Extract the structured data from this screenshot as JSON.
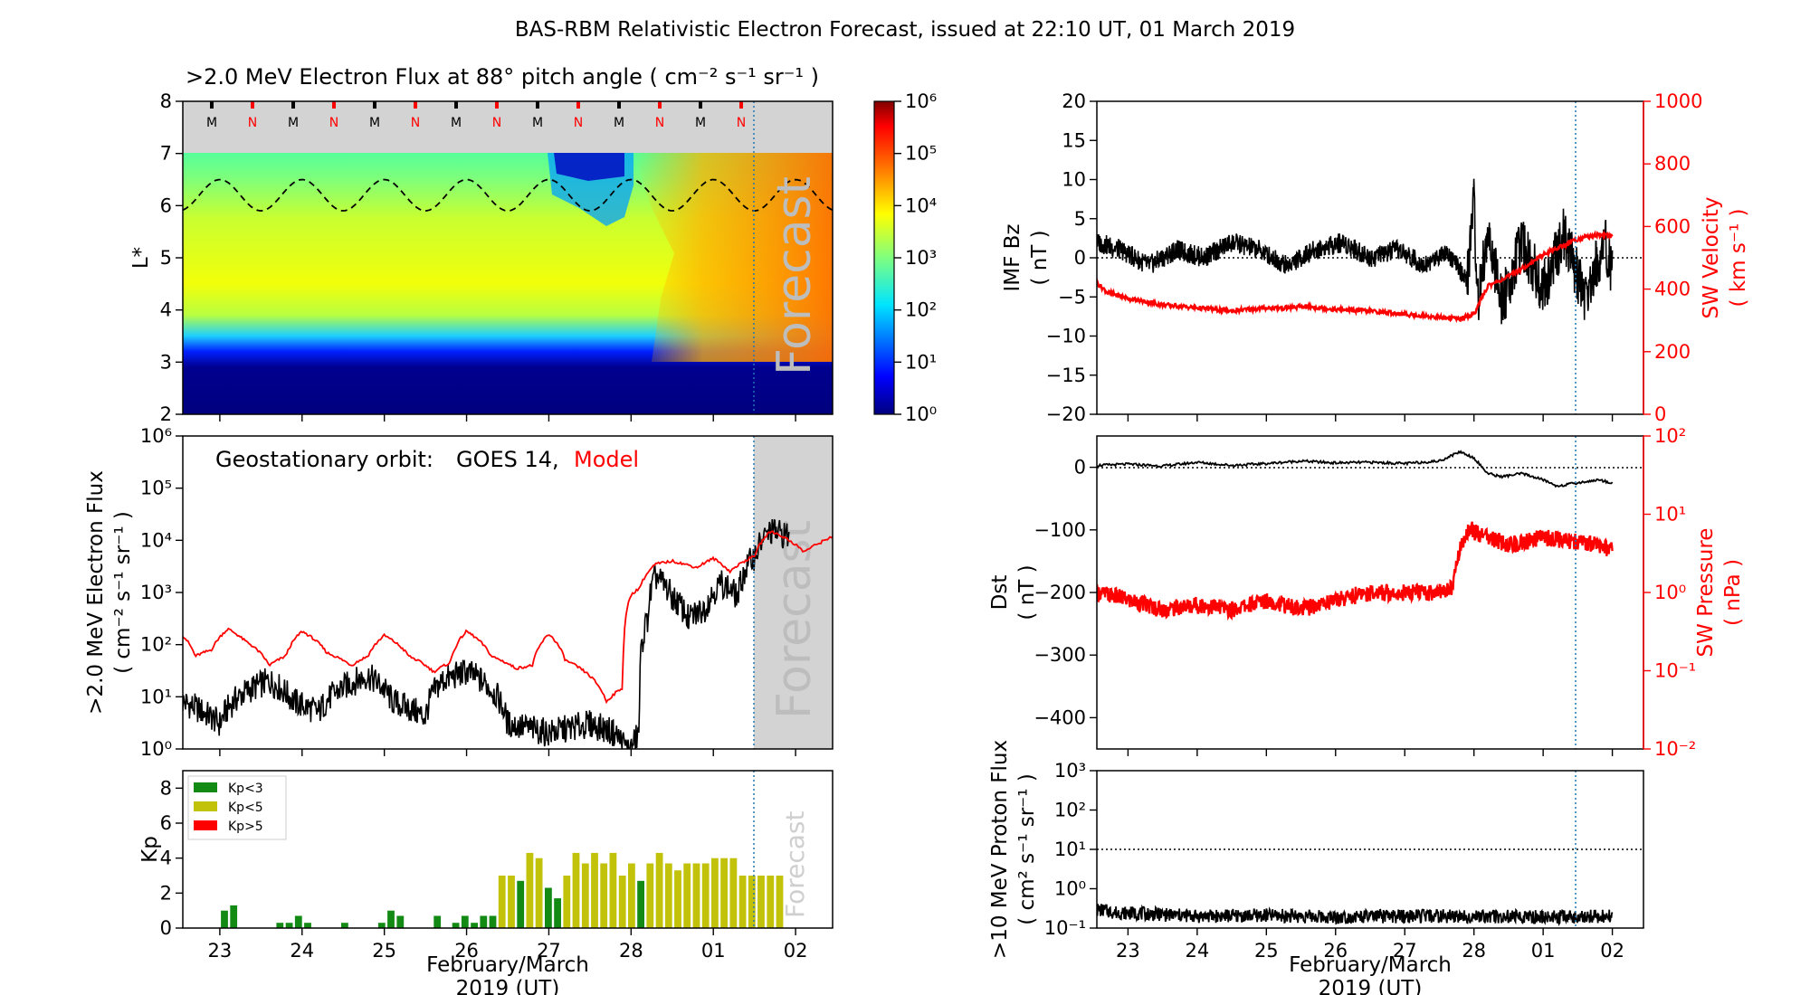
{
  "figure": {
    "title": "BAS-RBM Relativistic Electron Forecast, issued at 22:10 UT, 01 March 2019",
    "forecast_word": "Forecast",
    "date_ticks": [
      "23",
      "24",
      "25",
      "26",
      "27",
      "28",
      "01",
      "02"
    ],
    "xlabel_line1": "February/March",
    "xlabel_line2": "2019 (UT)"
  },
  "chart_data": [
    {
      "id": "lstar-flux",
      "type": "heatmap",
      "title": ">2.0 MeV Electron Flux at 88° pitch angle ( cm⁻² s⁻¹ sr⁻¹ )",
      "ylabel": "L*",
      "yticks": [
        "2",
        "3",
        "4",
        "5",
        "6",
        "7",
        "8"
      ],
      "ylim": [
        2,
        8
      ],
      "x_range_days": [
        -0.45,
        7.45
      ],
      "issue_time_day": 6.92,
      "colorbar": {
        "scale": "log",
        "range": [
          1,
          1000000
        ],
        "ticks": [
          "10⁰",
          "10¹",
          "10²",
          "10³",
          "10⁴",
          "10⁵",
          "10⁶"
        ]
      },
      "orbit_markers": [
        "M",
        "N",
        "M",
        "N",
        "M",
        "N",
        "M",
        "N",
        "M",
        "N",
        "M",
        "N",
        "M",
        "N"
      ],
      "orbit_marker_colors": {
        "M": "#000000",
        "N": "#ff0000"
      },
      "magnetopause_line": {
        "style": "dashed",
        "approx_range_lstar": [
          5.9,
          6.5
        ]
      }
    },
    {
      "id": "geo-flux",
      "type": "line",
      "ylabel": ">2.0 MeV Electron Flux",
      "ylabel_units": "( cm⁻² s⁻¹ sr⁻¹ )",
      "yscale": "log",
      "ylim": [
        1,
        1000000
      ],
      "yticks": [
        "10⁰",
        "10¹",
        "10²",
        "10³",
        "10⁴",
        "10⁵",
        "10⁶"
      ],
      "legend": {
        "prefix": "Geostationary orbit:",
        "observed": "GOES 14,",
        "model": "Model",
        "position": "top-left"
      },
      "series": [
        {
          "name": "GOES 14",
          "color": "#000000",
          "x": [
            -0.45,
            -0.2,
            0.0,
            0.3,
            0.6,
            0.9,
            1.2,
            1.5,
            1.8,
            2.1,
            2.5,
            2.7,
            3.0,
            3.5,
            4.0,
            4.5,
            4.8,
            4.95,
            5.0,
            5.1,
            5.2,
            5.3,
            5.5,
            5.7,
            5.9,
            6.1,
            6.3,
            6.5,
            6.7,
            6.92
          ],
          "y": [
            8,
            5,
            3,
            12,
            20,
            8,
            5,
            15,
            25,
            8,
            4,
            20,
            30,
            3,
            2,
            3,
            2,
            1,
            1,
            2,
            300,
            2000,
            800,
            300,
            500,
            1500,
            800,
            5000,
            15000,
            12000
          ]
        },
        {
          "name": "Model",
          "color": "#ff0000",
          "x": [
            -0.45,
            -0.3,
            -0.1,
            0.1,
            0.3,
            0.6,
            0.8,
            1.0,
            1.3,
            1.6,
            1.8,
            2.0,
            2.3,
            2.6,
            2.8,
            3.0,
            3.3,
            3.6,
            3.8,
            4.0,
            4.2,
            4.5,
            4.7,
            4.9,
            5.0,
            5.1,
            5.3,
            5.5,
            5.8,
            6.0,
            6.2,
            6.5,
            6.7,
            6.92,
            7.1,
            7.3,
            7.45
          ],
          "y": [
            150,
            60,
            80,
            200,
            120,
            40,
            60,
            180,
            70,
            40,
            60,
            150,
            60,
            30,
            45,
            180,
            60,
            35,
            40,
            160,
            50,
            25,
            8,
            15,
            900,
            1200,
            3500,
            4000,
            3000,
            4500,
            2500,
            5000,
            15000,
            10000,
            6000,
            9000,
            12000
          ]
        }
      ]
    },
    {
      "id": "kp",
      "type": "bar",
      "ylabel": "Kp",
      "ylim": [
        0,
        9
      ],
      "yticks": [
        "0",
        "2",
        "4",
        "6",
        "8"
      ],
      "bar_width_days": 0.1125,
      "bar_start_day": 0.0,
      "values": [
        1.0,
        1.3,
        0,
        0,
        0,
        0,
        0.3,
        0.3,
        0.7,
        0.3,
        0,
        0,
        0,
        0.3,
        0,
        0,
        0,
        0.3,
        1.0,
        0.7,
        0,
        0,
        0,
        0.7,
        0,
        0.3,
        0.7,
        0.3,
        0.7,
        0.7,
        3.0,
        3.0,
        2.7,
        4.3,
        4.0,
        2.3,
        1.7,
        3.0,
        4.3,
        3.7,
        4.3,
        3.7,
        4.3,
        3.0,
        3.7,
        2.7,
        3.7,
        4.3,
        3.7,
        3.3,
        3.7,
        3.7,
        3.7,
        4.0,
        4.0,
        4.0,
        3.0,
        3.0,
        3.0,
        3.0,
        3.0
      ],
      "legend": [
        {
          "label": "Kp<3",
          "color": "#138a13"
        },
        {
          "label": "Kp<5",
          "color": "#c2c20a"
        },
        {
          "label": "Kp>5",
          "color": "#ff0000"
        }
      ]
    },
    {
      "id": "imf-sw",
      "type": "line",
      "ylabel_left": "IMF Bz",
      "ylabel_left_units": "( nT )",
      "ylim_left": [
        -20,
        20
      ],
      "yticks_left": [
        "−20",
        "−15",
        "−10",
        "−5",
        "0",
        "5",
        "10",
        "15",
        "20"
      ],
      "ylabel_right": "SW Velocity",
      "ylabel_right_units": "( km s⁻¹ )",
      "ylim_right": [
        0,
        1000
      ],
      "yticks_right": [
        "0",
        "200",
        "400",
        "600",
        "800",
        "1000"
      ],
      "series": [
        {
          "name": "IMF Bz",
          "color": "#000000",
          "axis": "left",
          "x": [
            -0.45,
            -0.1,
            0.3,
            0.7,
            1.1,
            1.5,
            1.9,
            2.3,
            2.7,
            3.1,
            3.5,
            3.9,
            4.3,
            4.6,
            4.9,
            5.0,
            5.05,
            5.2,
            5.4,
            5.7,
            6.0,
            6.3,
            6.6,
            6.9,
            7.0
          ],
          "y": [
            2,
            1,
            -1,
            1,
            0,
            2,
            1,
            -1,
            1,
            2,
            0,
            1,
            -1,
            1,
            -3,
            8,
            -6,
            3,
            -6,
            2,
            -4,
            3,
            -5,
            2,
            -2
          ]
        },
        {
          "name": "SW Velocity",
          "color": "#ff0000",
          "axis": "right",
          "x": [
            -0.45,
            -0.3,
            0.0,
            0.5,
            1.0,
            1.5,
            2.0,
            2.3,
            2.6,
            3.0,
            3.5,
            4.0,
            4.5,
            4.8,
            5.0,
            5.2,
            5.5,
            5.8,
            6.0,
            6.2,
            6.5,
            6.8,
            7.0
          ],
          "y": [
            420,
            390,
            370,
            350,
            340,
            330,
            340,
            340,
            345,
            335,
            330,
            320,
            310,
            305,
            320,
            410,
            440,
            480,
            510,
            530,
            560,
            575,
            570
          ]
        }
      ]
    },
    {
      "id": "dst-pressure",
      "type": "line",
      "ylabel_left": "Dst",
      "ylabel_left_units": "( nT )",
      "ylim_left": [
        -450,
        50
      ],
      "yticks_left": [
        "−400",
        "−300",
        "−200",
        "−100",
        "0"
      ],
      "ylabel_right": "SW Pressure",
      "ylabel_right_units": "( nPa )",
      "ylim_right": [
        0.01,
        100
      ],
      "yticks_right": [
        "10⁻²",
        "10⁻¹",
        "10⁰",
        "10¹",
        "10²"
      ],
      "series": [
        {
          "name": "Dst",
          "color": "#000000",
          "axis": "left",
          "x": [
            -0.45,
            0.0,
            0.5,
            1.0,
            1.5,
            2.0,
            2.5,
            3.0,
            3.5,
            4.0,
            4.5,
            4.8,
            5.0,
            5.2,
            5.4,
            5.7,
            6.0,
            6.2,
            6.5,
            6.8,
            7.0
          ],
          "y": [
            3,
            5,
            2,
            8,
            3,
            6,
            10,
            7,
            8,
            6,
            10,
            25,
            15,
            -10,
            -15,
            -10,
            -20,
            -30,
            -25,
            -20,
            -25
          ]
        },
        {
          "name": "SW Pressure",
          "color": "#ff0000",
          "axis": "right",
          "x": [
            -0.45,
            -0.2,
            0.0,
            0.5,
            1.0,
            1.5,
            2.0,
            2.5,
            3.0,
            3.5,
            4.0,
            4.5,
            4.7,
            4.95,
            5.0,
            5.2,
            5.5,
            6.0,
            6.5,
            6.8,
            7.0
          ],
          "y": [
            1.0,
            0.9,
            0.8,
            0.6,
            0.7,
            0.6,
            0.8,
            0.6,
            0.8,
            1.0,
            1.0,
            1.0,
            1.2,
            7.0,
            6.0,
            5.0,
            4.0,
            5.0,
            4.5,
            4.0,
            3.5
          ]
        }
      ]
    },
    {
      "id": "proton-flux",
      "type": "line",
      "ylabel": ">10 MeV Proton Flux",
      "ylabel_units": "( cm² s⁻¹ sr⁻¹ )",
      "yscale": "log",
      "ylim": [
        0.1,
        1000
      ],
      "yticks": [
        "10⁻¹",
        "10⁰",
        "10¹",
        "10²",
        "10³"
      ],
      "threshold": 10,
      "series": [
        {
          "name": ">10 MeV Proton Flux",
          "color": "#000000",
          "x": [
            -0.45,
            -0.2,
            0.5,
            1.0,
            2.0,
            3.0,
            4.0,
            5.0,
            6.0,
            7.0
          ],
          "y": [
            0.3,
            0.25,
            0.22,
            0.2,
            0.21,
            0.19,
            0.2,
            0.2,
            0.19,
            0.2
          ]
        }
      ]
    }
  ]
}
